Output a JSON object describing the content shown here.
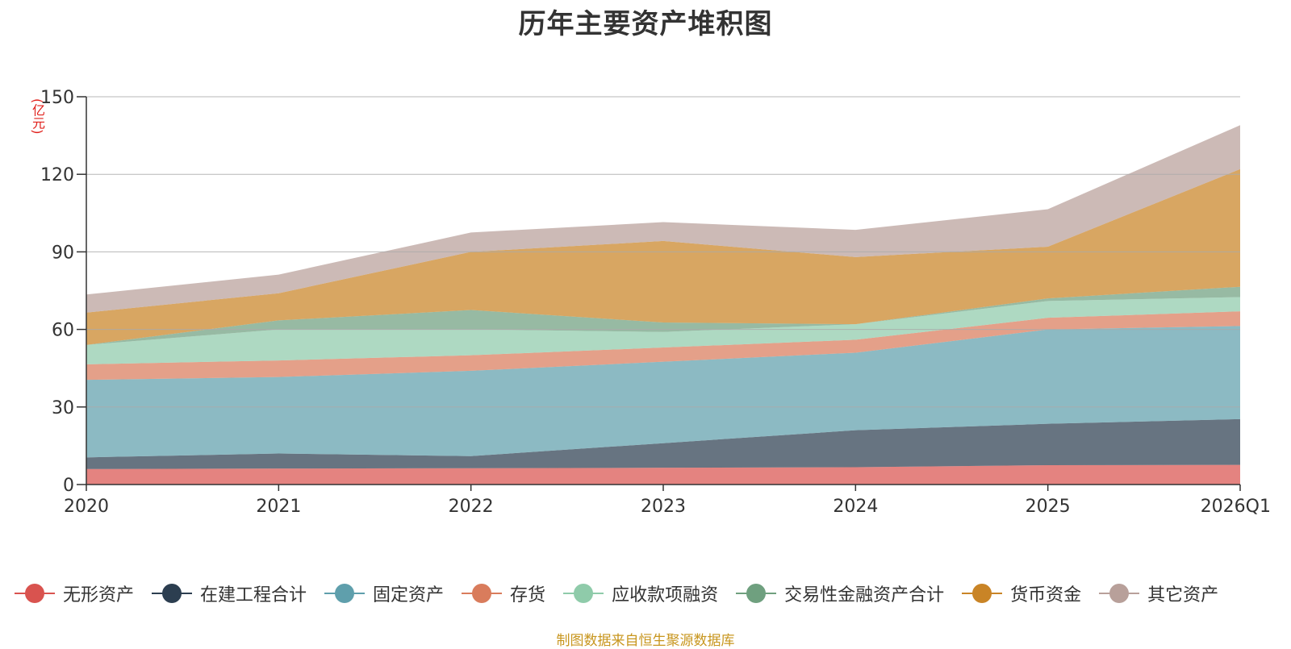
{
  "chart_data": {
    "type": "area",
    "stacked": true,
    "title": "历年主要资产堆积图",
    "ylabel": "(亿元)",
    "ylim": [
      0,
      150
    ],
    "yticks": [
      0,
      30,
      60,
      90,
      120,
      150
    ],
    "categories": [
      "2020",
      "2021",
      "2022",
      "2023",
      "2024",
      "2025",
      "2026Q1"
    ],
    "series": [
      {
        "name": "无形资产",
        "color": "#d9534f",
        "values": [
          6,
          6.2,
          6.3,
          6.5,
          6.7,
          7.5,
          7.6
        ]
      },
      {
        "name": "在建工程合计",
        "color": "#2c3e50",
        "values": [
          4.5,
          5.8,
          4.7,
          9.5,
          14.3,
          16,
          17.7
        ]
      },
      {
        "name": "固定资产",
        "color": "#5f9fac",
        "values": [
          30,
          29.6,
          33,
          31.5,
          30,
          36.5,
          36
        ]
      },
      {
        "name": "存货",
        "color": "#d97c5c",
        "values": [
          6,
          6.4,
          6,
          5.5,
          5,
          4.5,
          5.7
        ]
      },
      {
        "name": "应收款项融资",
        "color": "#8fcbaa",
        "values": [
          7.5,
          12,
          10,
          6,
          6,
          6.5,
          5.5
        ]
      },
      {
        "name": "交易性金融资产合计",
        "color": "#6fa07f",
        "values": [
          0,
          3.5,
          7.5,
          3.7,
          0,
          1,
          4
        ]
      },
      {
        "name": "货币资金",
        "color": "#c98426",
        "values": [
          12.5,
          10.5,
          22.5,
          31.5,
          26,
          20,
          45.5
        ]
      },
      {
        "name": "其它资产",
        "color": "#b8a09a",
        "values": [
          7,
          7.2,
          7.5,
          7.3,
          10.5,
          14.5,
          17
        ]
      }
    ],
    "legend_position": "bottom",
    "grid": true
  },
  "source_text": "制图数据来自恒生聚源数据库"
}
